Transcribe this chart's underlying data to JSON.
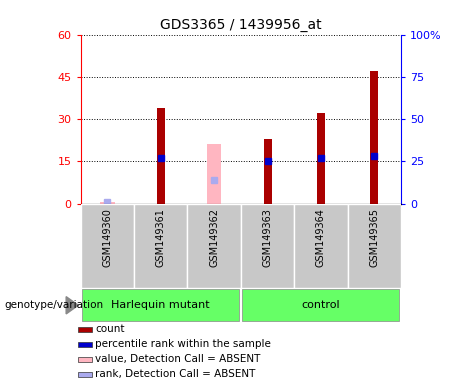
{
  "title": "GDS3365 / 1439956_at",
  "samples": [
    "GSM149360",
    "GSM149361",
    "GSM149362",
    "GSM149363",
    "GSM149364",
    "GSM149365"
  ],
  "count_values": [
    null,
    34,
    null,
    23,
    32,
    47
  ],
  "count_absent": [
    0.5,
    null,
    21,
    null,
    null,
    null
  ],
  "percentile_rank": [
    null,
    27,
    null,
    25,
    27,
    28
  ],
  "percentile_rank_absent": [
    1.0,
    null,
    14,
    null,
    null,
    null
  ],
  "ylim_left": [
    0,
    60
  ],
  "ylim_right": [
    0,
    100
  ],
  "yticks_left": [
    0,
    15,
    30,
    45,
    60
  ],
  "yticks_right": [
    0,
    25,
    50,
    75,
    100
  ],
  "ytick_labels_left": [
    "0",
    "15",
    "30",
    "45",
    "60"
  ],
  "ytick_labels_right": [
    "0",
    "25",
    "50",
    "75",
    "100%"
  ],
  "bar_width": 0.15,
  "count_color": "#AA0000",
  "count_absent_color": "#FFB6C1",
  "rank_color": "#0000CC",
  "rank_absent_color": "#AAAAEE",
  "group_row_color": "#66FF66",
  "legend": [
    {
      "label": "count",
      "color": "#AA0000"
    },
    {
      "label": "percentile rank within the sample",
      "color": "#0000CC"
    },
    {
      "label": "value, Detection Call = ABSENT",
      "color": "#FFB6C1"
    },
    {
      "label": "rank, Detection Call = ABSENT",
      "color": "#AAAAEE"
    }
  ],
  "groups": [
    {
      "label": "Harlequin mutant",
      "start": 0,
      "end": 3
    },
    {
      "label": "control",
      "start": 3,
      "end": 6
    }
  ]
}
